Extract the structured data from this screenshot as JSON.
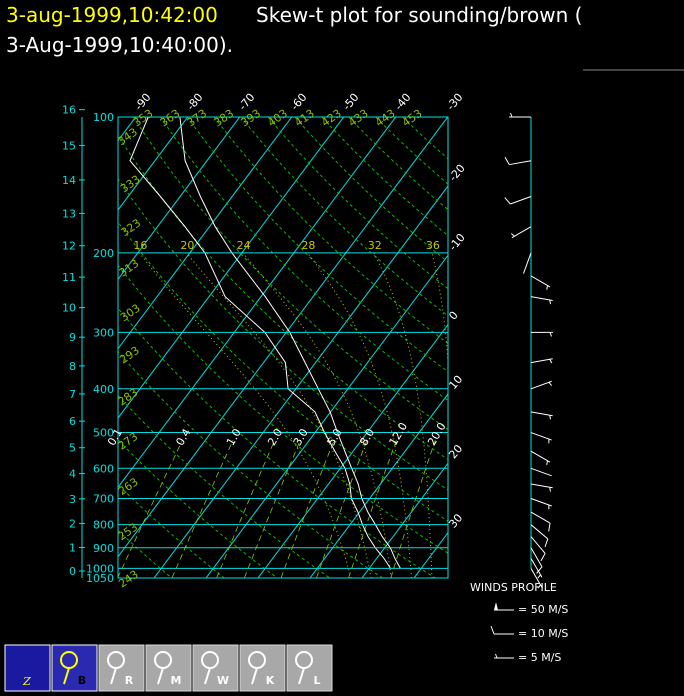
{
  "title": {
    "time": "3-aug-1999,10:42:00",
    "line1": "Skew-t plot for sounding/brown (",
    "line2": "3-Aug-1999,10:40:00)."
  },
  "chart_data": {
    "type": "skew-t",
    "plim": [
      100,
      1050
    ],
    "pressure_ticks": [
      100,
      200,
      300,
      400,
      500,
      600,
      700,
      800,
      900,
      1000,
      1050
    ],
    "altitude_ticks": [
      0,
      1,
      2,
      3,
      4,
      5,
      6,
      7,
      8,
      9,
      10,
      11,
      12,
      13,
      14,
      15,
      16
    ],
    "temperature_ticks": [
      -90,
      -80,
      -70,
      -60,
      -50,
      -40,
      -30,
      -20,
      -10,
      0,
      10,
      20,
      30
    ],
    "dry_adiabats": [
      243,
      253,
      263,
      273,
      283,
      293,
      303,
      313,
      323,
      333,
      343,
      353,
      363,
      373,
      383,
      393,
      403,
      413,
      423,
      433,
      443,
      453
    ],
    "moist_adiabats": [
      16,
      20,
      24,
      28,
      32,
      36
    ],
    "mixing_ratios": [
      0.1,
      0.4,
      {
        "value": 1,
        "label": "1.0"
      },
      {
        "value": 2,
        "label": "2.0"
      },
      {
        "value": 3,
        "label": "3.0"
      },
      {
        "value": 5,
        "label": "5.0"
      },
      {
        "value": 8,
        "label": "8.0"
      },
      {
        "value": 12,
        "label": "12.0"
      },
      {
        "value": 20,
        "label": "20.0"
      }
    ],
    "pressure": [
      1000,
      950,
      900,
      850,
      800,
      750,
      700,
      650,
      600,
      550,
      500,
      450,
      400,
      350,
      300,
      250,
      200,
      175,
      150,
      125,
      100
    ],
    "series": [
      {
        "color": "#ffffff",
        "values": [
          26.0,
          23.5,
          21.1,
          17.9,
          14.9,
          11.6,
          8.5,
          5.7,
          2.2,
          -1.6,
          -5.7,
          -10.1,
          -15.7,
          -22.0,
          -29.3,
          -39.2,
          -51.9,
          -58.9,
          -66.1,
          -74.2,
          -81.5
        ]
      },
      {
        "color": "#ffffff",
        "values": [
          24.1,
          21.4,
          18.2,
          15.2,
          12.4,
          9.7,
          6.5,
          4.1,
          0.9,
          -3.5,
          -8.2,
          -13.0,
          -21.5,
          -25.8,
          -34.1,
          -46.9,
          -57.1,
          -64.7,
          -73.8,
          -84.8,
          -87.6
        ]
      }
    ],
    "winds": {
      "title": "WINDS PROFILE",
      "pressure": [
        100,
        125,
        150,
        175,
        200,
        225,
        250,
        300,
        350,
        400,
        450,
        500,
        550,
        600,
        650,
        700,
        750,
        800,
        850,
        900,
        950,
        1000
      ],
      "direction": [
        270,
        260,
        250,
        240,
        200,
        120,
        100,
        90,
        80,
        70,
        100,
        110,
        120,
        110,
        100,
        110,
        120,
        130,
        140,
        150,
        150,
        150
      ],
      "speed": [
        8,
        12,
        10,
        8,
        4,
        5,
        6,
        5,
        6,
        5,
        8,
        6,
        5,
        4,
        6,
        8,
        10,
        10,
        12,
        10,
        8,
        6
      ],
      "legend": [
        {
          "speed": 50,
          "label": "= 50 M/S"
        },
        {
          "speed": 10,
          "label": "= 10 M/S"
        },
        {
          "speed": 5,
          "label": "= 5 M/S"
        }
      ]
    },
    "colors": {
      "isotherm": "#00e0e0",
      "isobar": "#00e0e0",
      "dry_adiabat": "#00c000",
      "moist_adiabat": "#c8c800",
      "mixing_ratio": "#80d000",
      "wind": "#ffffff"
    }
  },
  "toolbar": {
    "logo": "Z",
    "buttons": [
      "B",
      "R",
      "M",
      "W",
      "K",
      "L"
    ]
  }
}
